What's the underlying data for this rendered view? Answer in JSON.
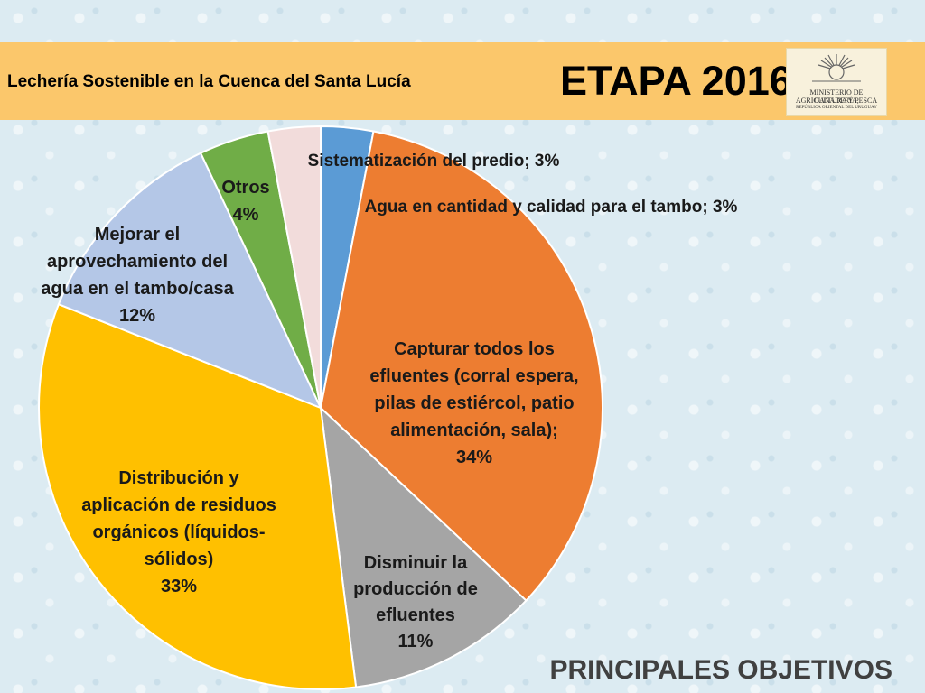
{
  "header": {
    "subtitle": "Lechería Sostenible en la Cuenca del Santa Lucía",
    "title": "ETAPA 2016"
  },
  "logo": {
    "line1": "MINISTERIO DE GANADERÍA,",
    "line2": "AGRICULTURA Y PESCA",
    "line3": "REPÚBLICA ORIENTAL DEL URUGUAY",
    "icon": "sun-icon"
  },
  "footer": {
    "label": "PRINCIPALES OBJETIVOS"
  },
  "colors": {
    "header_band": "#fbc76b",
    "page_background": "#dcebf2"
  },
  "chart_data": {
    "type": "pie",
    "title": "",
    "start_angle_deg": 0,
    "direction": "clockwise",
    "slices": [
      {
        "key": "sistematizacion",
        "value": 3,
        "color": "#5b9bd5",
        "label": [
          "Sistematización del predio; 3%"
        ]
      },
      {
        "key": "capturar",
        "value": 34,
        "color": "#ed7d31",
        "label": [
          "Capturar todos los",
          "efluentes (corral espera,",
          "pilas de estiércol, patio",
          "alimentación, sala);",
          "34%"
        ]
      },
      {
        "key": "disminuir",
        "value": 11,
        "color": "#a5a5a5",
        "label": [
          "Disminuir la",
          "producción de",
          "efluentes",
          "11%"
        ]
      },
      {
        "key": "distribucion",
        "value": 33,
        "color": "#ffc000",
        "label": [
          "Distribución y",
          "aplicación de residuos",
          "orgánicos (líquidos-",
          "sólidos)",
          "33%"
        ]
      },
      {
        "key": "mejorar",
        "value": 12,
        "color": "#b4c7e7",
        "label": [
          "Mejorar el",
          "aprovechamiento del",
          "agua en el tambo/casa",
          "12%"
        ]
      },
      {
        "key": "otros",
        "value": 4,
        "color": "#70ad47",
        "label": [
          "Otros",
          "4%"
        ]
      },
      {
        "key": "agua",
        "value": 3,
        "color": "#f2dcdb",
        "label": [
          "Agua en cantidad y calidad para el tambo; 3%"
        ]
      }
    ]
  }
}
